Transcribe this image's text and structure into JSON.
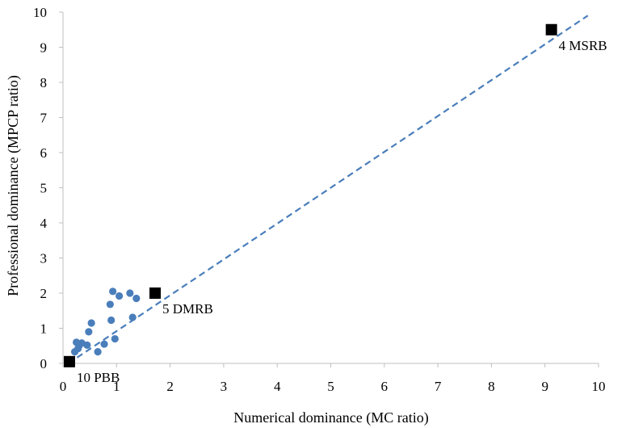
{
  "chart_data": {
    "type": "scatter",
    "xlabel": "Numerical dominance (MC ratio)",
    "ylabel": "Professional dominance (MPCP ratio)",
    "xlim": [
      0,
      10
    ],
    "ylim": [
      0,
      10
    ],
    "x_ticks": [
      "0",
      "1",
      "2",
      "3",
      "4",
      "5",
      "6",
      "7",
      "8",
      "9",
      "10"
    ],
    "y_ticks": [
      "0",
      "1",
      "2",
      "3",
      "4",
      "5",
      "6",
      "7",
      "8",
      "9",
      "10"
    ],
    "grid": false,
    "legend": "none",
    "colors": {
      "points": "#4a7ebb",
      "reference_line": "#4a7ebb",
      "highlight_points": "#000000",
      "axis": "#bfbfbf"
    },
    "series": [
      {
        "marker": "circle",
        "points": [
          {
            "x": 0.22,
            "y": 0.33
          },
          {
            "x": 0.25,
            "y": 0.6
          },
          {
            "x": 0.28,
            "y": 0.42
          },
          {
            "x": 0.3,
            "y": 0.5
          },
          {
            "x": 0.35,
            "y": 0.58
          },
          {
            "x": 0.45,
            "y": 0.52
          },
          {
            "x": 0.48,
            "y": 0.9
          },
          {
            "x": 0.53,
            "y": 1.15
          },
          {
            "x": 0.65,
            "y": 0.33
          },
          {
            "x": 0.77,
            "y": 0.55
          },
          {
            "x": 0.88,
            "y": 1.68
          },
          {
            "x": 0.9,
            "y": 1.23
          },
          {
            "x": 0.93,
            "y": 2.05
          },
          {
            "x": 0.97,
            "y": 0.7
          },
          {
            "x": 1.05,
            "y": 1.92
          },
          {
            "x": 1.25,
            "y": 2.0
          },
          {
            "x": 1.3,
            "y": 1.31
          },
          {
            "x": 1.37,
            "y": 1.85
          }
        ]
      },
      {
        "marker": "square",
        "points": [
          {
            "x": 0.12,
            "y": 0.05,
            "label": "10 PBB"
          },
          {
            "x": 1.72,
            "y": 2.0,
            "label": "5 DMRB"
          },
          {
            "x": 9.12,
            "y": 9.5,
            "label": "4 MSRB"
          }
        ]
      }
    ],
    "reference_line": {
      "style": "dashed",
      "from": [
        0.1,
        0
      ],
      "to": [
        9.8,
        9.9
      ]
    }
  }
}
